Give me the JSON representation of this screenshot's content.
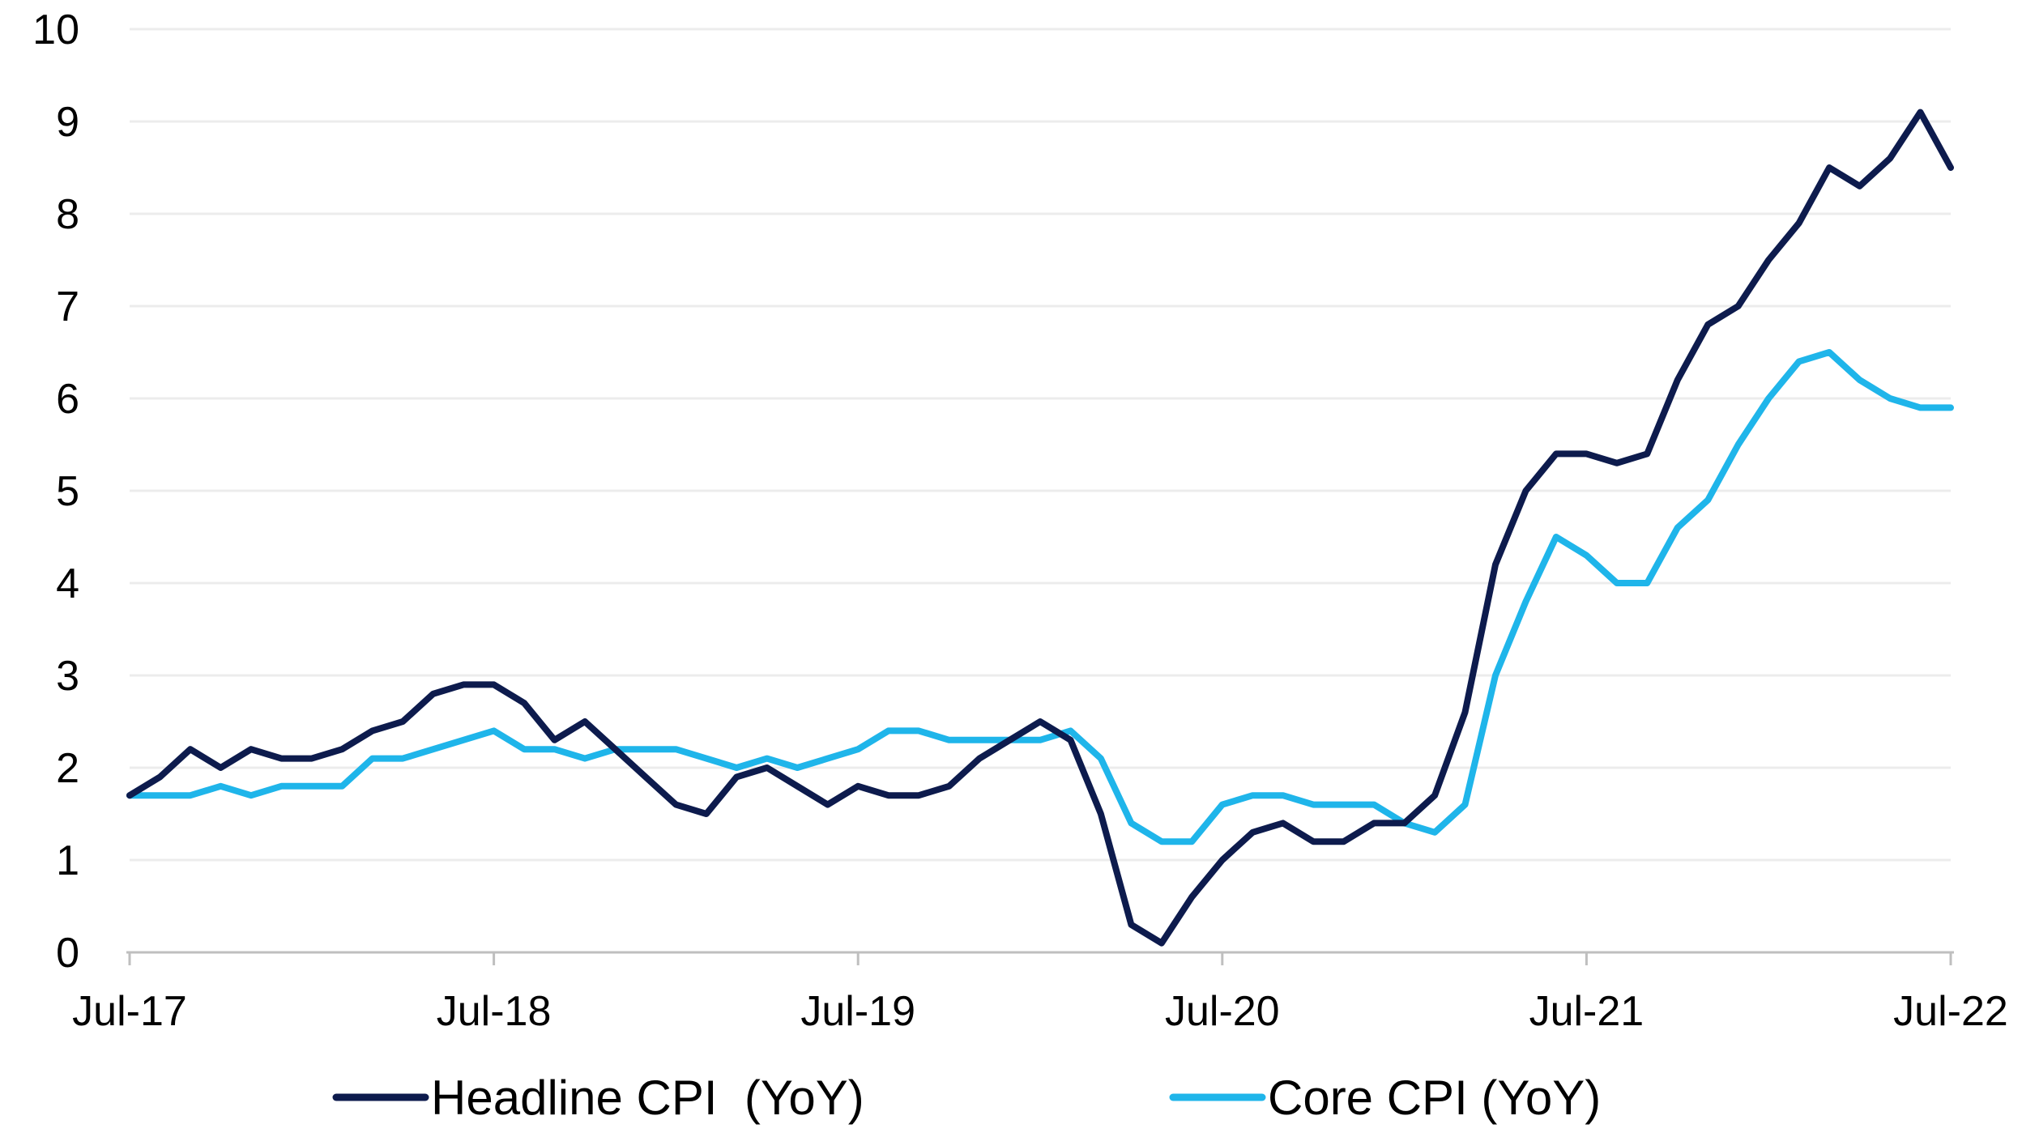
{
  "chart_data": {
    "type": "line",
    "title": "",
    "xlabel": "",
    "ylabel": "",
    "ylim": [
      0,
      10
    ],
    "yticks": [
      0,
      1,
      2,
      3,
      4,
      5,
      6,
      7,
      8,
      9,
      10
    ],
    "x": [
      "Jul-17",
      "Aug-17",
      "Sep-17",
      "Oct-17",
      "Nov-17",
      "Dec-17",
      "Jan-18",
      "Feb-18",
      "Mar-18",
      "Apr-18",
      "May-18",
      "Jun-18",
      "Jul-18",
      "Aug-18",
      "Sep-18",
      "Oct-18",
      "Nov-18",
      "Dec-18",
      "Jan-19",
      "Feb-19",
      "Mar-19",
      "Apr-19",
      "May-19",
      "Jun-19",
      "Jul-19",
      "Aug-19",
      "Sep-19",
      "Oct-19",
      "Nov-19",
      "Dec-19",
      "Jan-20",
      "Feb-20",
      "Mar-20",
      "Apr-20",
      "May-20",
      "Jun-20",
      "Jul-20",
      "Aug-20",
      "Sep-20",
      "Oct-20",
      "Nov-20",
      "Dec-20",
      "Jan-21",
      "Feb-21",
      "Mar-21",
      "Apr-21",
      "May-21",
      "Jun-21",
      "Jul-21",
      "Aug-21",
      "Sep-21",
      "Oct-21",
      "Nov-21",
      "Dec-21",
      "Jan-22",
      "Feb-22",
      "Mar-22",
      "Apr-22",
      "May-22",
      "Jun-22",
      "Jul-22"
    ],
    "x_tick_labels": [
      "Jul-17",
      "Jul-18",
      "Jul-19",
      "Jul-20",
      "Jul-21",
      "Jul-22"
    ],
    "grid": "horizontal",
    "legend_placement": "bottom",
    "series": [
      {
        "name": "Headline CPI  (YoY)",
        "color": "#0d1b4d",
        "values": [
          1.7,
          1.9,
          2.2,
          2.0,
          2.2,
          2.1,
          2.1,
          2.2,
          2.4,
          2.5,
          2.8,
          2.9,
          2.9,
          2.7,
          2.3,
          2.5,
          2.2,
          1.9,
          1.6,
          1.5,
          1.9,
          2.0,
          1.8,
          1.6,
          1.8,
          1.7,
          1.7,
          1.8,
          2.1,
          2.3,
          2.5,
          2.3,
          1.5,
          0.3,
          0.1,
          0.6,
          1.0,
          1.3,
          1.4,
          1.2,
          1.2,
          1.4,
          1.4,
          1.7,
          2.6,
          4.2,
          5.0,
          5.4,
          5.4,
          5.3,
          5.4,
          6.2,
          6.8,
          7.0,
          7.5,
          7.9,
          8.5,
          8.3,
          8.6,
          9.1,
          8.5
        ]
      },
      {
        "name": "Core CPI (YoY)",
        "color": "#1fb5ea",
        "values": [
          1.7,
          1.7,
          1.7,
          1.8,
          1.7,
          1.8,
          1.8,
          1.8,
          2.1,
          2.1,
          2.2,
          2.3,
          2.4,
          2.2,
          2.2,
          2.1,
          2.2,
          2.2,
          2.2,
          2.1,
          2.0,
          2.1,
          2.0,
          2.1,
          2.2,
          2.4,
          2.4,
          2.3,
          2.3,
          2.3,
          2.3,
          2.4,
          2.1,
          1.4,
          1.2,
          1.2,
          1.6,
          1.7,
          1.7,
          1.6,
          1.6,
          1.6,
          1.4,
          1.3,
          1.6,
          3.0,
          3.8,
          4.5,
          4.3,
          4.0,
          4.0,
          4.6,
          4.9,
          5.5,
          6.0,
          6.4,
          6.5,
          6.2,
          6.0,
          5.9,
          5.9
        ]
      }
    ]
  }
}
